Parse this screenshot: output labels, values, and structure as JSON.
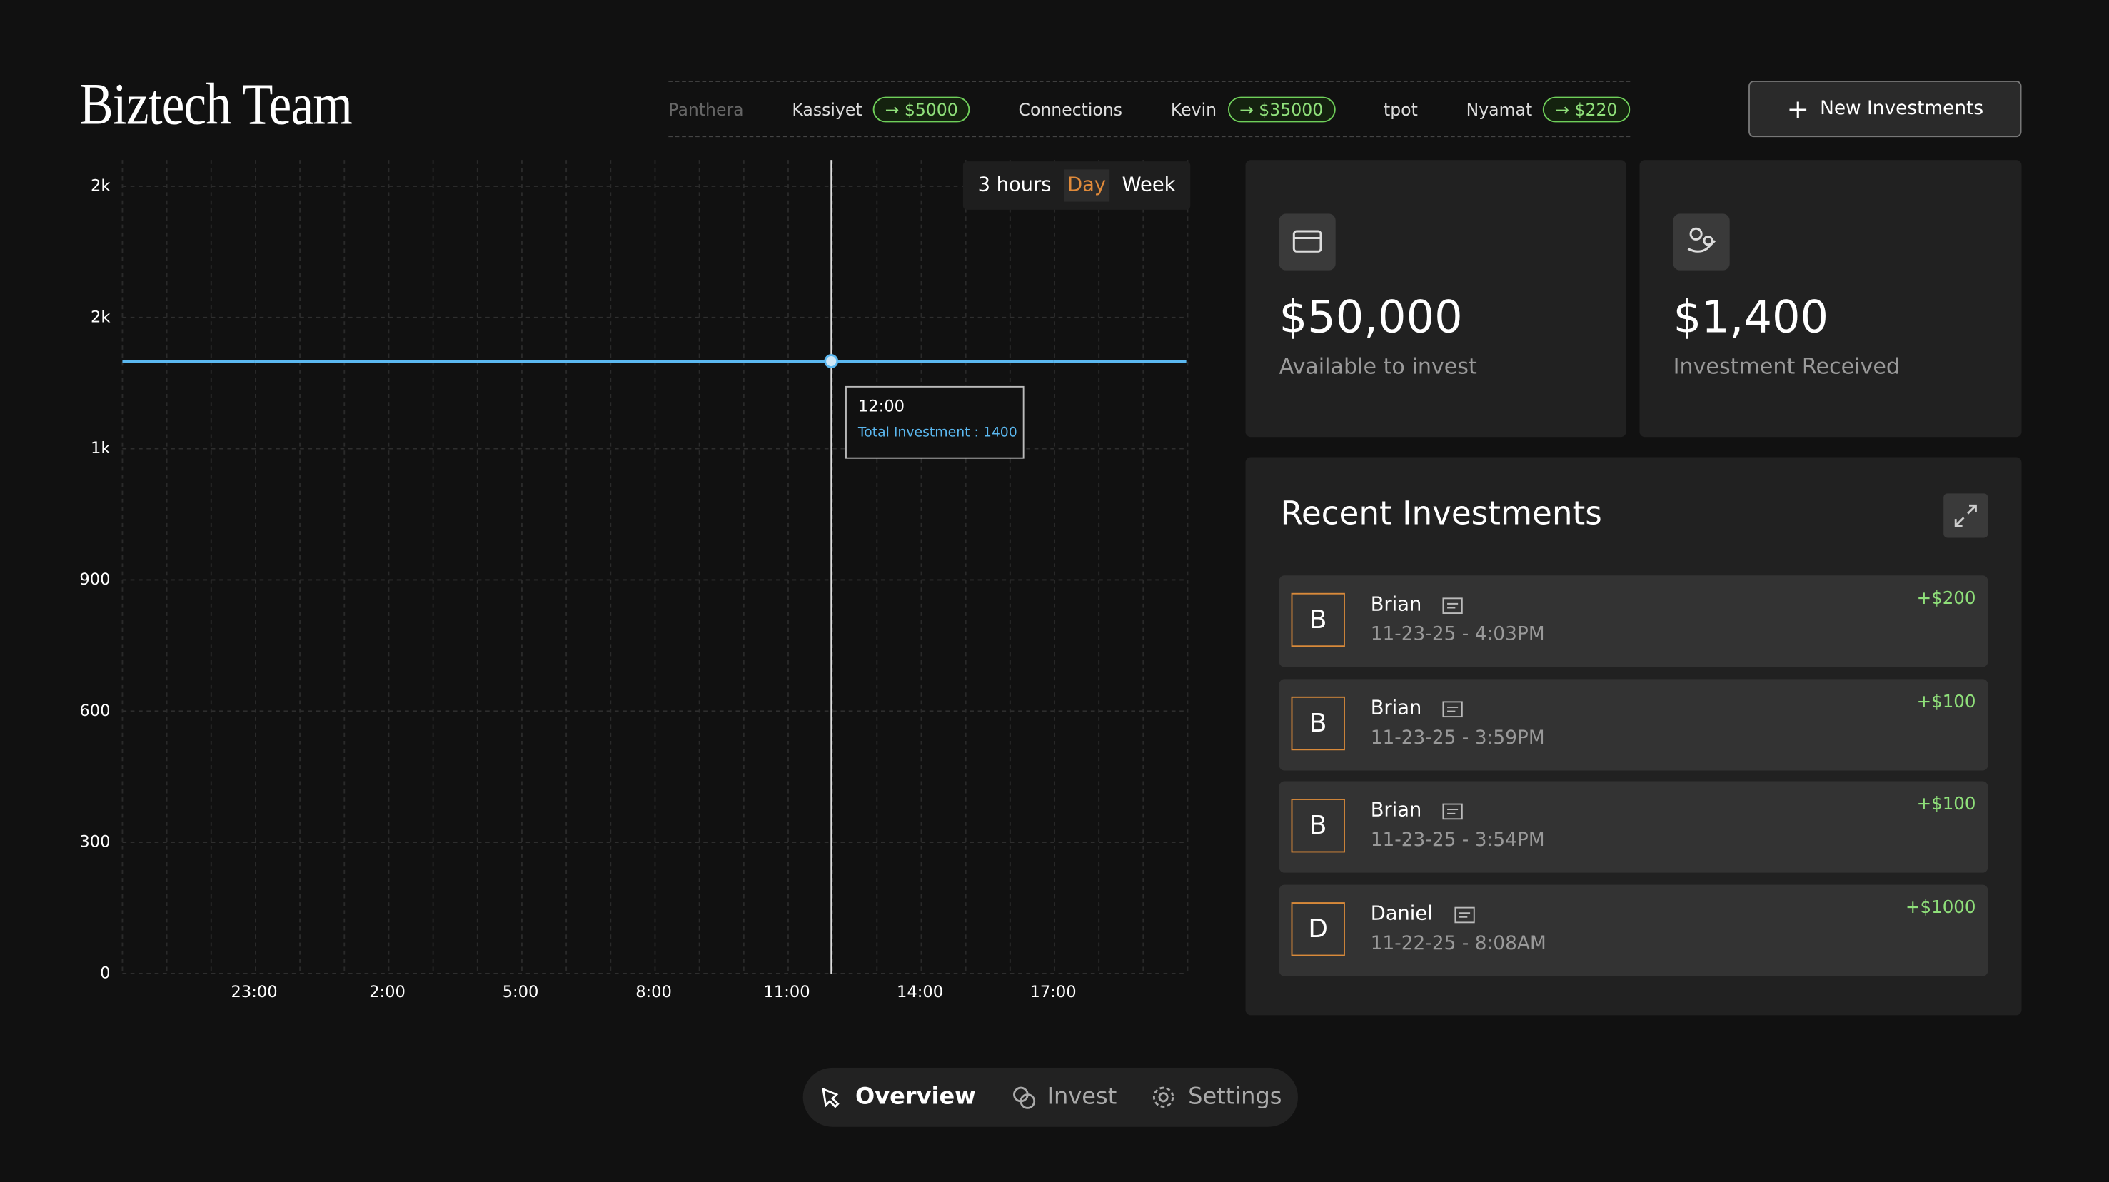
{
  "header": {
    "title": "Biztech Team",
    "button": "New Investments"
  },
  "ticker": [
    {
      "name": "Panthera"
    },
    {
      "name": "Kassiyet",
      "amount": "$5000"
    },
    {
      "name": "Connections"
    },
    {
      "name": "Kevin",
      "amount": "$35000"
    },
    {
      "name": "tpot"
    },
    {
      "name": "Nyamat",
      "amount": "$220"
    }
  ],
  "range_options": [
    "3 hours",
    "Day",
    "Week"
  ],
  "range_active": 1,
  "chart_data": {
    "type": "line",
    "categories": [
      "23:00",
      "2:00",
      "5:00",
      "8:00",
      "11:00",
      "14:00",
      "17:00"
    ],
    "series": [
      {
        "name": "Total Investment",
        "color": "#5bb8f0",
        "values": [
          1400,
          1400,
          1400,
          1400,
          1400,
          1400,
          1400
        ]
      }
    ],
    "ylim": [
      0,
      1860
    ],
    "yticks": [
      0,
      300,
      600,
      900,
      {
        "value": 1200,
        "label": "1k"
      },
      {
        "value": 1500,
        "label": "2k"
      },
      {
        "value": 1800,
        "label": "2k"
      }
    ],
    "grid": true,
    "tooltip": {
      "time": "12:00",
      "text": "Total Investment : 1400"
    }
  },
  "cards": [
    {
      "amount": "$50,000",
      "label": "Available to invest"
    },
    {
      "amount": "$1,400",
      "label": "Investment Received"
    }
  ],
  "recent": {
    "title": "Recent Investments",
    "items": [
      {
        "initial": "B",
        "name": "Brian",
        "date": "11-23-25 - 4:03PM",
        "amount": "+$200"
      },
      {
        "initial": "B",
        "name": "Brian",
        "date": "11-23-25 - 3:59PM",
        "amount": "+$100"
      },
      {
        "initial": "B",
        "name": "Brian",
        "date": "11-23-25 - 3:54PM",
        "amount": "+$100"
      },
      {
        "initial": "D",
        "name": "Daniel",
        "date": "11-22-25 - 8:08AM",
        "amount": "+$1000"
      }
    ]
  },
  "nav": [
    "Overview",
    "Invest",
    "Settings"
  ],
  "nav_active": 0
}
